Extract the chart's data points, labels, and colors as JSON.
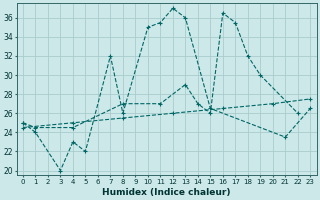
{
  "xlabel": "Humidex (Indice chaleur)",
  "xlim": [
    -0.5,
    23.5
  ],
  "ylim": [
    19.5,
    37.5
  ],
  "yticks": [
    20,
    22,
    24,
    26,
    28,
    30,
    32,
    34,
    36
  ],
  "xticks": [
    0,
    1,
    2,
    3,
    4,
    5,
    6,
    7,
    8,
    9,
    10,
    11,
    12,
    13,
    14,
    15,
    16,
    17,
    18,
    19,
    20,
    21,
    22,
    23
  ],
  "background_color": "#cce8e8",
  "grid_color": "#aacccc",
  "line_color": "#006666",
  "series": [
    {
      "x": [
        0,
        1,
        3,
        4,
        5,
        7,
        8,
        10,
        11,
        12,
        13,
        15,
        21,
        23
      ],
      "y": [
        25,
        24,
        20,
        23,
        22,
        32,
        26,
        35,
        35.5,
        37,
        36,
        26.5,
        23.5,
        26.5
      ]
    },
    {
      "x": [
        0,
        1,
        4,
        8,
        11,
        13,
        14,
        15,
        16,
        17,
        18,
        19,
        22
      ],
      "y": [
        25,
        24.5,
        24.5,
        27,
        27,
        29,
        27,
        26,
        36.5,
        35.5,
        32,
        30,
        26
      ]
    },
    {
      "x": [
        0,
        4,
        8,
        12,
        16,
        20,
        23
      ],
      "y": [
        24.5,
        25.0,
        25.5,
        26.0,
        26.5,
        27.0,
        27.5
      ]
    }
  ]
}
